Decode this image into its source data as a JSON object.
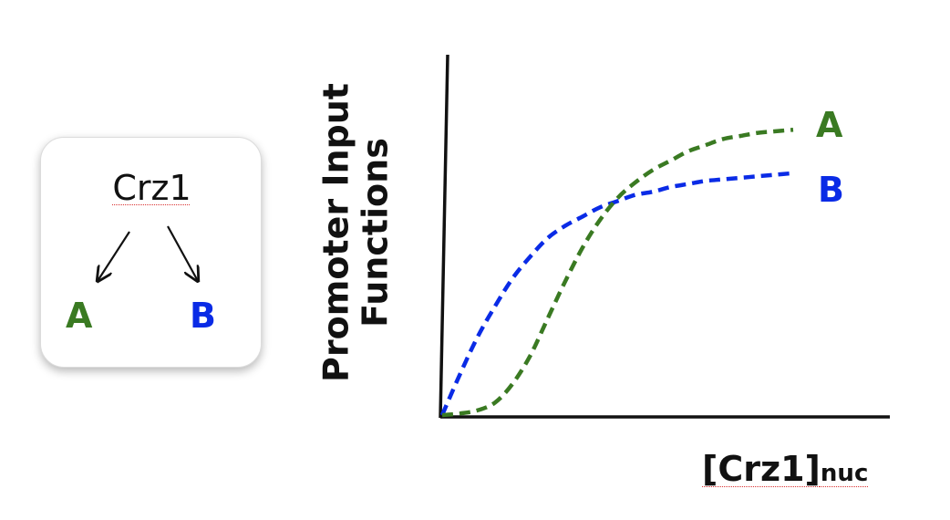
{
  "panel": {
    "title": "Crz1",
    "label_a": "A",
    "label_b": "B"
  },
  "chart": {
    "ylabel_line1": "Promoter Input",
    "ylabel_line2": "Functions",
    "xlabel_main": "[Crz1]",
    "xlabel_sub": "nuc",
    "curve_label_a": "A",
    "curve_label_b": "B"
  },
  "colors": {
    "a": "#3a7a22",
    "b": "#0a2be6",
    "axis": "#111111"
  },
  "chart_data": {
    "type": "line",
    "title": "",
    "xlabel": "[Crz1]nuc",
    "ylabel": "Promoter Input Functions",
    "xlim": [
      0,
      1
    ],
    "ylim": [
      0,
      1
    ],
    "grid": false,
    "series": [
      {
        "name": "A",
        "x": [
          0.0,
          0.05,
          0.1,
          0.15,
          0.2,
          0.25,
          0.3,
          0.35,
          0.4,
          0.45,
          0.5,
          0.55,
          0.6,
          0.65,
          0.7,
          0.75,
          0.8,
          0.85,
          0.9,
          0.95,
          1.0
        ],
        "y": [
          0.0,
          0.005,
          0.015,
          0.04,
          0.1,
          0.19,
          0.31,
          0.43,
          0.54,
          0.63,
          0.7,
          0.75,
          0.79,
          0.82,
          0.85,
          0.87,
          0.89,
          0.9,
          0.91,
          0.915,
          0.92
        ]
      },
      {
        "name": "B",
        "x": [
          0.0,
          0.05,
          0.1,
          0.15,
          0.2,
          0.25,
          0.3,
          0.35,
          0.4,
          0.45,
          0.5,
          0.55,
          0.6,
          0.65,
          0.7,
          0.75,
          0.8,
          0.85,
          0.9,
          0.95,
          1.0
        ],
        "y": [
          0.0,
          0.13,
          0.25,
          0.35,
          0.44,
          0.51,
          0.57,
          0.61,
          0.64,
          0.67,
          0.69,
          0.71,
          0.72,
          0.735,
          0.745,
          0.755,
          0.76,
          0.765,
          0.77,
          0.775,
          0.78
        ]
      }
    ]
  }
}
